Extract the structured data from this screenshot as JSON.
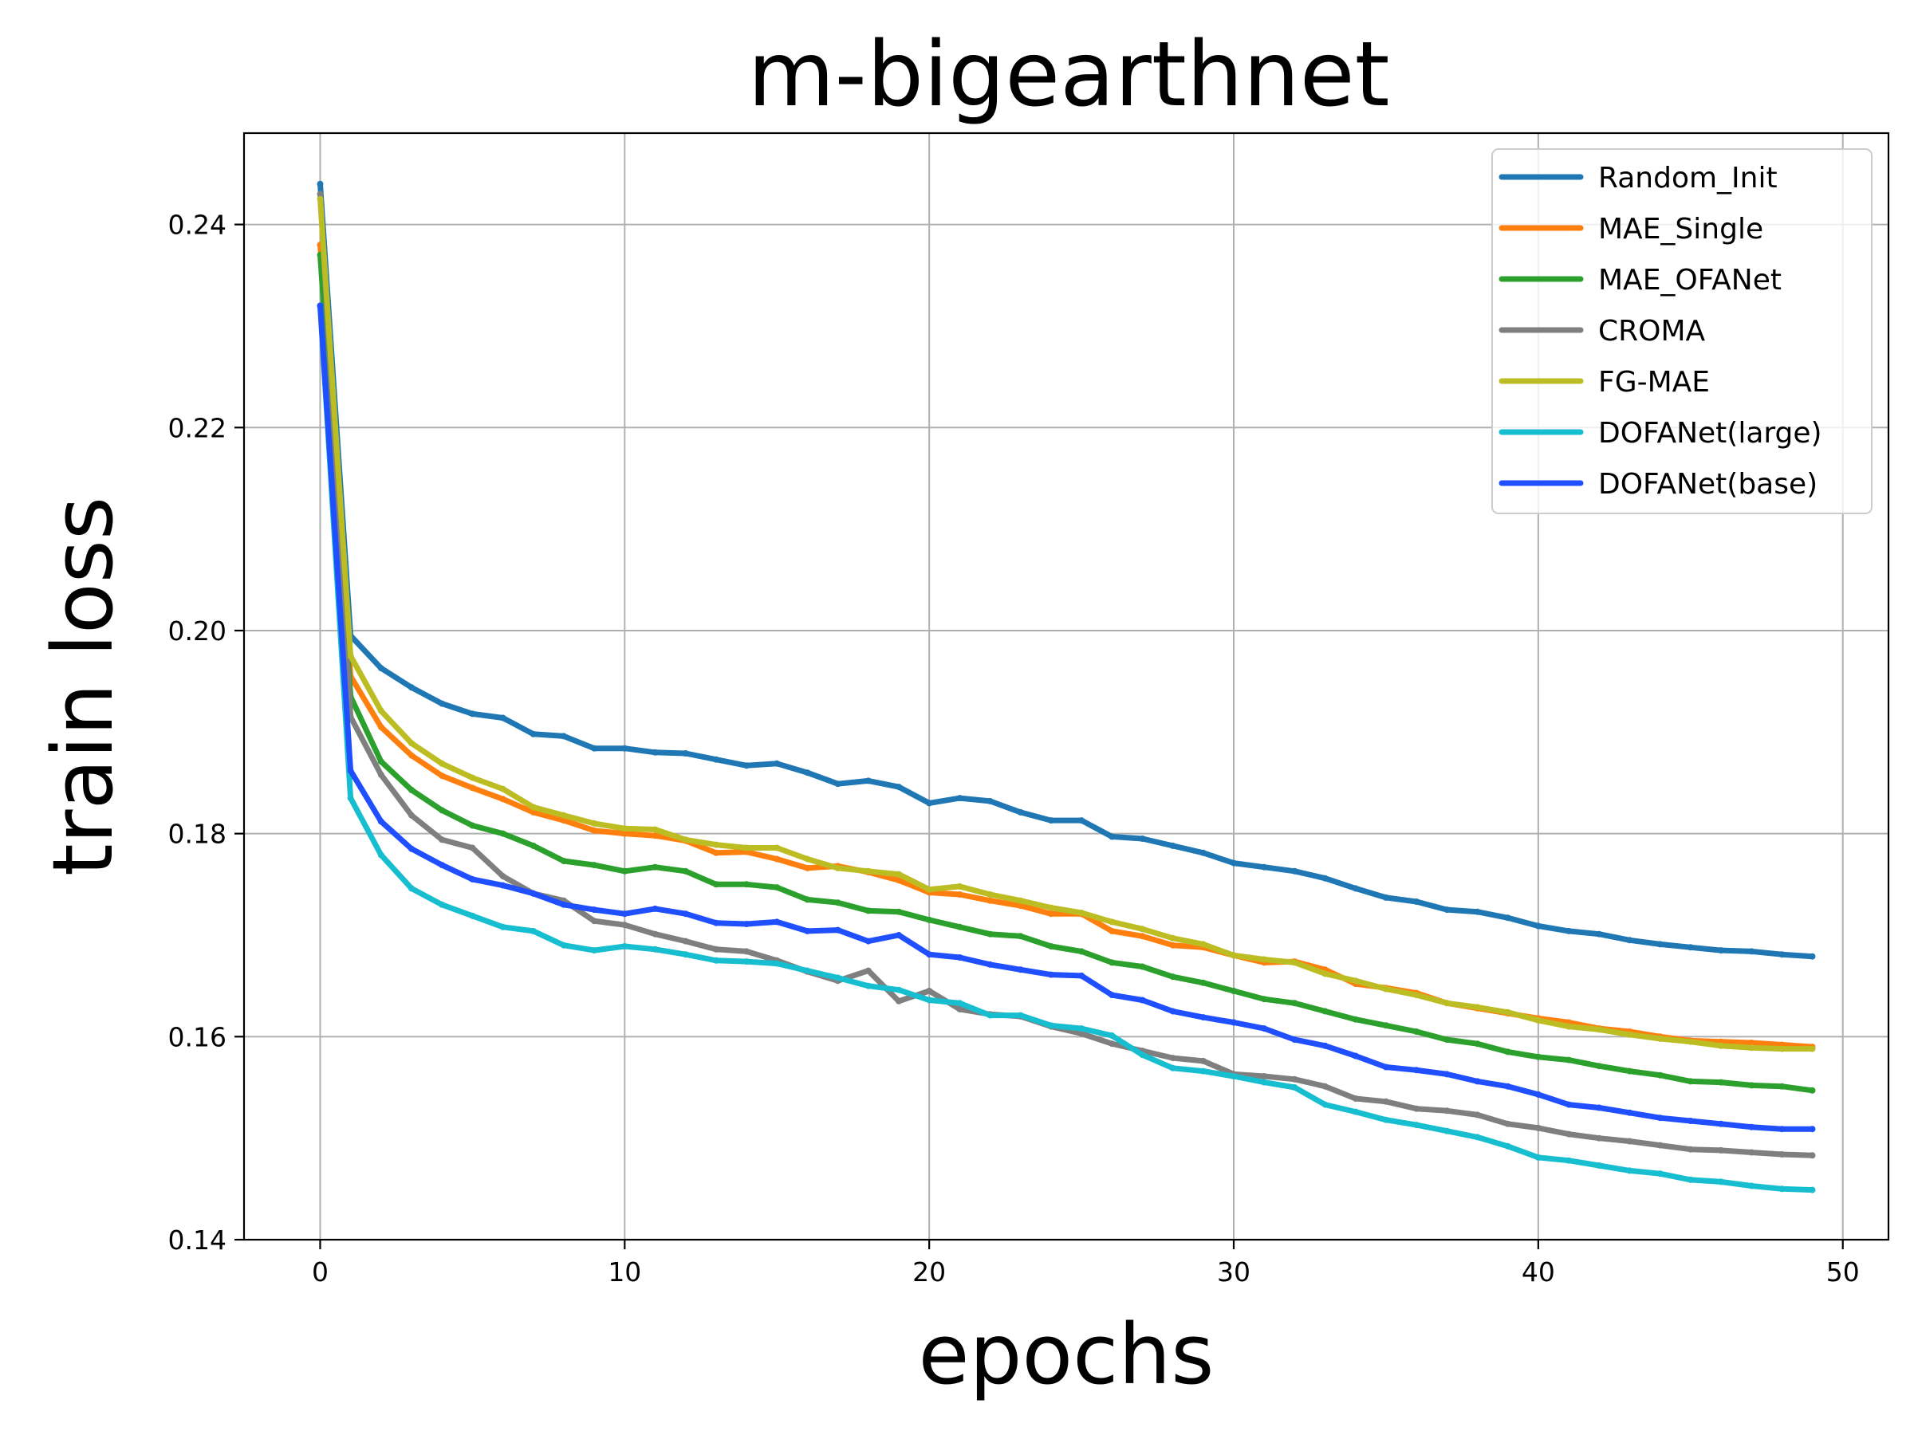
{
  "chart_data": {
    "type": "line",
    "title": "m-bigearthnet",
    "xlabel": "epochs",
    "ylabel": "train loss",
    "xlim": [
      -2.5,
      51.5
    ],
    "ylim": [
      0.14,
      0.249
    ],
    "xticks": [
      0,
      10,
      20,
      30,
      40,
      50
    ],
    "yticks": [
      0.14,
      0.16,
      0.18,
      0.2,
      0.22,
      0.24
    ],
    "xtick_labels": [
      "0",
      "10",
      "20",
      "30",
      "40",
      "50"
    ],
    "ytick_labels": [
      "0.14",
      "0.16",
      "0.18",
      "0.20",
      "0.22",
      "0.24"
    ],
    "grid": true,
    "legend_position": "upper right",
    "series": [
      {
        "name": "Random_Init",
        "color": "#1f77b4",
        "values": [
          0.244,
          0.1995,
          0.1963,
          0.1944,
          0.1928,
          0.1918,
          0.1914,
          0.1898,
          0.1896,
          0.1884,
          0.1884,
          0.188,
          0.1879,
          0.1873,
          0.1867,
          0.1869,
          0.186,
          0.1849,
          0.1852,
          0.1846,
          0.183,
          0.1835,
          0.1832,
          0.1821,
          0.1813,
          0.1813,
          0.1797,
          0.1795,
          0.1788,
          0.1781,
          0.1771,
          0.1767,
          0.1763,
          0.1756,
          0.1746,
          0.1737,
          0.1733,
          0.1725,
          0.1723,
          0.1717,
          0.1709,
          0.1704,
          0.1701,
          0.1695,
          0.1691,
          0.1688,
          0.1685,
          0.1684,
          0.1681,
          0.1679
        ]
      },
      {
        "name": "MAE_Single",
        "color": "#ff7f0e",
        "values": [
          0.238,
          0.1955,
          0.1905,
          0.1877,
          0.1857,
          0.1845,
          0.1834,
          0.1821,
          0.1813,
          0.1803,
          0.18,
          0.1798,
          0.1793,
          0.1781,
          0.1782,
          0.1775,
          0.1766,
          0.1768,
          0.1762,
          0.1754,
          0.1742,
          0.174,
          0.1734,
          0.1729,
          0.1721,
          0.1721,
          0.1704,
          0.1699,
          0.169,
          0.1688,
          0.168,
          0.1673,
          0.1674,
          0.1666,
          0.1652,
          0.1648,
          0.1643,
          0.1633,
          0.1628,
          0.1623,
          0.1618,
          0.1614,
          0.1608,
          0.1605,
          0.16,
          0.1596,
          0.1595,
          0.1594,
          0.1592,
          0.159
        ]
      },
      {
        "name": "MAE_OFANet",
        "color": "#2ca02c",
        "values": [
          0.237,
          0.1935,
          0.1871,
          0.1843,
          0.1823,
          0.1808,
          0.18,
          0.1788,
          0.1773,
          0.1769,
          0.1763,
          0.1767,
          0.1763,
          0.175,
          0.175,
          0.1747,
          0.1735,
          0.1732,
          0.1724,
          0.1723,
          0.1715,
          0.1708,
          0.1701,
          0.1699,
          0.1689,
          0.1684,
          0.1673,
          0.1669,
          0.1659,
          0.1653,
          0.1645,
          0.1637,
          0.1633,
          0.1625,
          0.1617,
          0.1611,
          0.1605,
          0.1597,
          0.1593,
          0.1585,
          0.158,
          0.1577,
          0.1571,
          0.1566,
          0.1562,
          0.1556,
          0.1555,
          0.1552,
          0.1551,
          0.1547
        ]
      },
      {
        "name": "CROMA",
        "color": "#7f7f7f",
        "values": [
          0.243,
          0.1915,
          0.1858,
          0.1818,
          0.1794,
          0.1786,
          0.1758,
          0.1741,
          0.1734,
          0.1714,
          0.171,
          0.1701,
          0.1694,
          0.1686,
          0.1684,
          0.1675,
          0.1664,
          0.1655,
          0.1665,
          0.1635,
          0.1645,
          0.1627,
          0.1622,
          0.162,
          0.161,
          0.1603,
          0.1593,
          0.1586,
          0.1579,
          0.1576,
          0.1563,
          0.1561,
          0.1558,
          0.1551,
          0.1539,
          0.1536,
          0.1529,
          0.1527,
          0.1523,
          0.1514,
          0.151,
          0.1504,
          0.15,
          0.1497,
          0.1493,
          0.1489,
          0.1488,
          0.1486,
          0.1484,
          0.1483
        ]
      },
      {
        "name": "FG-MAE",
        "color": "#bcbd22",
        "values": [
          0.2425,
          0.1975,
          0.1921,
          0.1889,
          0.1869,
          0.1855,
          0.1844,
          0.1826,
          0.1818,
          0.181,
          0.1805,
          0.1804,
          0.1794,
          0.1789,
          0.1786,
          0.1786,
          0.1775,
          0.1766,
          0.1763,
          0.176,
          0.1745,
          0.1748,
          0.174,
          0.1734,
          0.1727,
          0.1722,
          0.1713,
          0.1706,
          0.1697,
          0.1691,
          0.168,
          0.1676,
          0.1673,
          0.1662,
          0.1655,
          0.1647,
          0.1641,
          0.1633,
          0.1629,
          0.1624,
          0.1616,
          0.161,
          0.1607,
          0.1602,
          0.1598,
          0.1595,
          0.1591,
          0.1589,
          0.1588,
          0.1588
        ]
      },
      {
        "name": "DOFANet(large)",
        "color": "#17becf",
        "values": [
          0.232,
          0.1835,
          0.1779,
          0.1746,
          0.173,
          0.1719,
          0.1708,
          0.1704,
          0.169,
          0.1685,
          0.1689,
          0.1686,
          0.1681,
          0.1675,
          0.1674,
          0.1672,
          0.1665,
          0.1658,
          0.165,
          0.1646,
          0.1636,
          0.1633,
          0.1621,
          0.1621,
          0.1611,
          0.1608,
          0.1601,
          0.1582,
          0.1569,
          0.1566,
          0.1561,
          0.1555,
          0.155,
          0.1533,
          0.1526,
          0.1518,
          0.1513,
          0.1507,
          0.1501,
          0.1492,
          0.1481,
          0.1478,
          0.1473,
          0.1468,
          0.1465,
          0.1459,
          0.1457,
          0.1453,
          0.145,
          0.1449
        ]
      },
      {
        "name": "DOFANet(base)",
        "color": "#1f4fff",
        "values": [
          0.232,
          0.1862,
          0.1812,
          0.1785,
          0.1769,
          0.1755,
          0.1749,
          0.1741,
          0.173,
          0.1725,
          0.1721,
          0.1726,
          0.1721,
          0.1712,
          0.1711,
          0.1713,
          0.1704,
          0.1705,
          0.1694,
          0.17,
          0.1681,
          0.1678,
          0.1671,
          0.1666,
          0.1661,
          0.166,
          0.1641,
          0.1636,
          0.1625,
          0.1619,
          0.1614,
          0.1608,
          0.1597,
          0.1591,
          0.1581,
          0.157,
          0.1567,
          0.1563,
          0.1556,
          0.1551,
          0.1543,
          0.1533,
          0.153,
          0.1525,
          0.152,
          0.1517,
          0.1514,
          0.1511,
          0.1509,
          0.1509
        ]
      }
    ]
  }
}
